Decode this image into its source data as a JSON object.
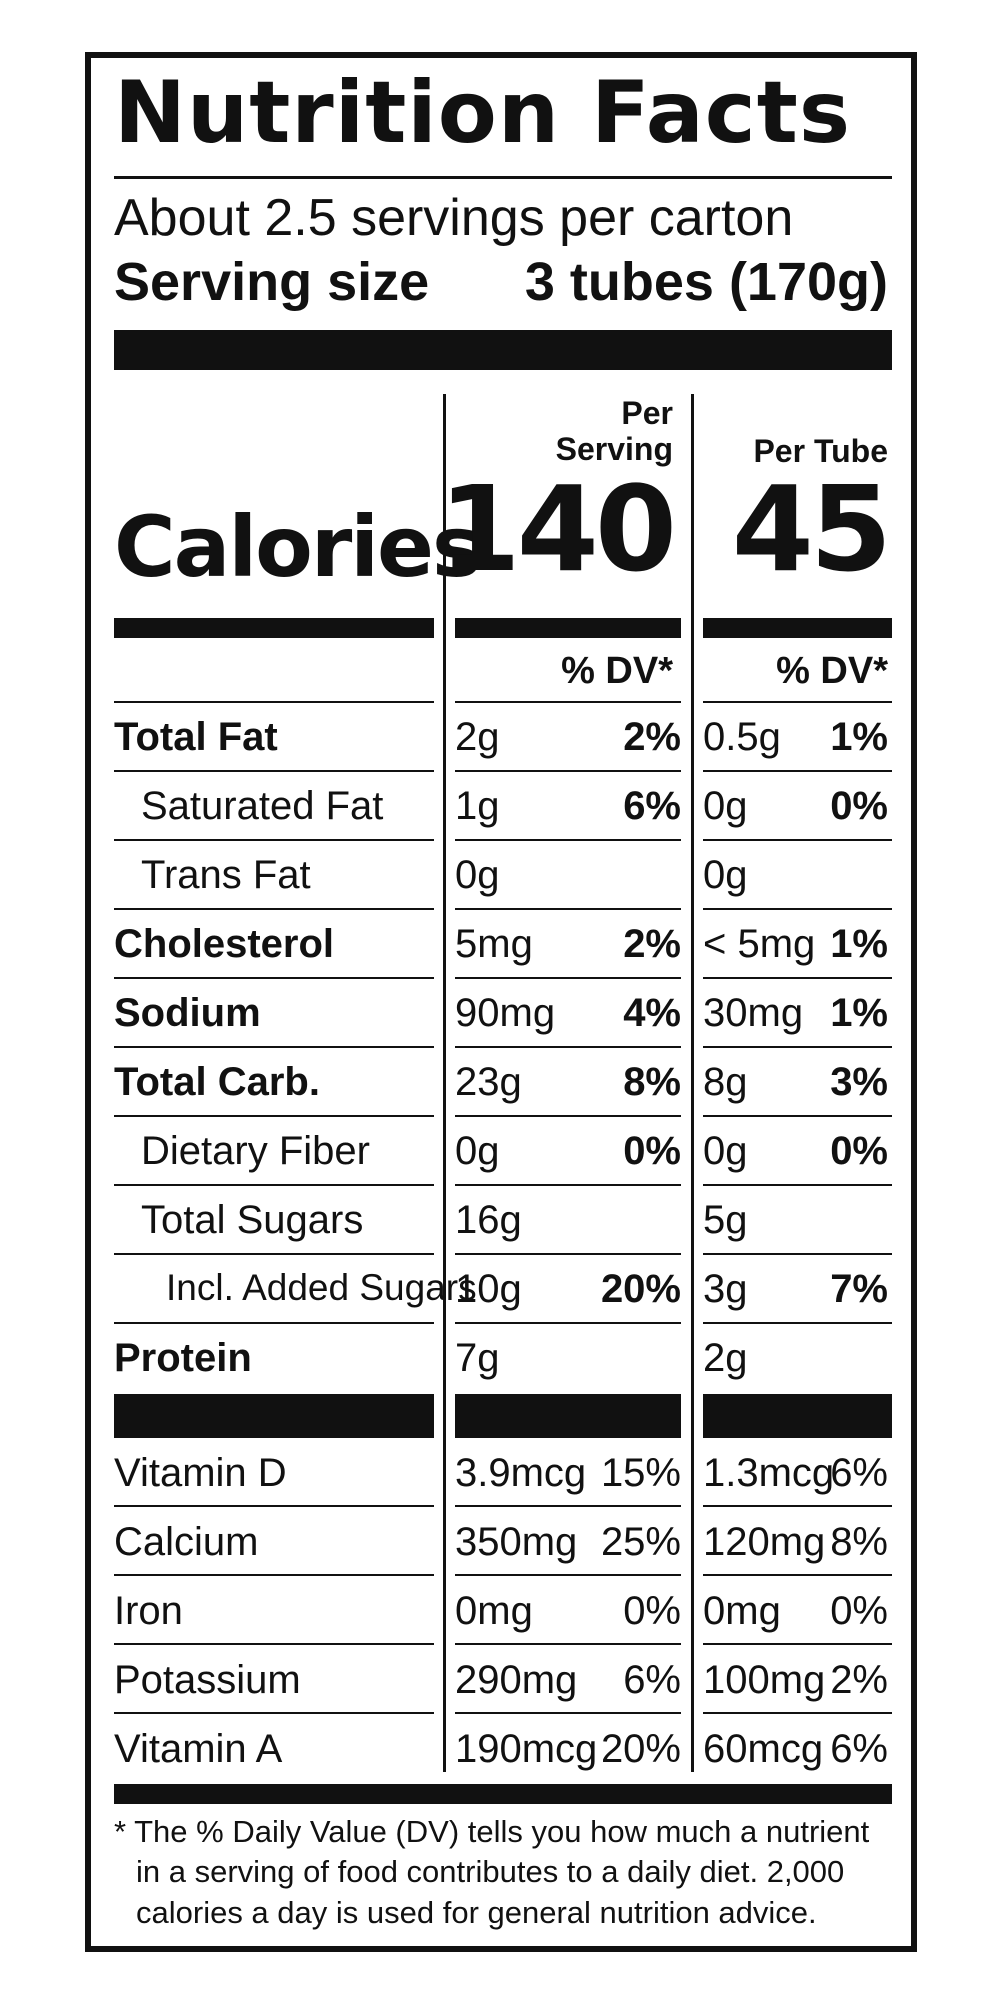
{
  "title": "Nutrition Facts",
  "servings_per_container": "About 2.5 servings per carton",
  "serving_size": {
    "label": "Serving size",
    "value": "3 tubes (170g)"
  },
  "calories": {
    "label": "Calories",
    "per_serving_header": [
      "Per",
      "Serving"
    ],
    "per_tube_header": "Per Tube",
    "per_serving": "140",
    "per_tube": "45"
  },
  "dv_header": "% DV*",
  "nutrients": [
    {
      "name": "Total Fat",
      "bold": true,
      "indent": 0,
      "serving_amt": "2g",
      "serving_dv": "2%",
      "tube_amt": "0.5g",
      "tube_dv": "1%"
    },
    {
      "name": "Saturated Fat",
      "bold": false,
      "indent": 1,
      "serving_amt": "1g",
      "serving_dv": "6%",
      "tube_amt": "0g",
      "tube_dv": "0%"
    },
    {
      "name": "Trans Fat",
      "bold": false,
      "indent": 1,
      "serving_amt": "0g",
      "serving_dv": "",
      "tube_amt": "0g",
      "tube_dv": ""
    },
    {
      "name": "Cholesterol",
      "bold": true,
      "indent": 0,
      "serving_amt": "5mg",
      "serving_dv": "2%",
      "tube_amt": "< 5mg",
      "tube_dv": "1%"
    },
    {
      "name": "Sodium",
      "bold": true,
      "indent": 0,
      "serving_amt": "90mg",
      "serving_dv": "4%",
      "tube_amt": "30mg",
      "tube_dv": "1%"
    },
    {
      "name": "Total Carb.",
      "bold": true,
      "indent": 0,
      "serving_amt": "23g",
      "serving_dv": "8%",
      "tube_amt": "8g",
      "tube_dv": "3%"
    },
    {
      "name": "Dietary Fiber",
      "bold": false,
      "indent": 1,
      "serving_amt": "0g",
      "serving_dv": "0%",
      "tube_amt": "0g",
      "tube_dv": "0%"
    },
    {
      "name": "Total Sugars",
      "bold": false,
      "indent": 1,
      "serving_amt": "16g",
      "serving_dv": "",
      "tube_amt": "5g",
      "tube_dv": ""
    },
    {
      "name": "Incl. Added Sugars",
      "bold": false,
      "indent": 2,
      "serving_amt": "10g",
      "serving_dv": "20%",
      "tube_amt": "3g",
      "tube_dv": "7%"
    },
    {
      "name": "Protein",
      "bold": true,
      "indent": 0,
      "serving_amt": "7g",
      "serving_dv": "",
      "tube_amt": "2g",
      "tube_dv": ""
    }
  ],
  "vitamins": [
    {
      "name": "Vitamin D",
      "serving_amt": "3.9mcg",
      "serving_dv": "15%",
      "tube_amt": "1.3mcg",
      "tube_dv": "6%"
    },
    {
      "name": "Calcium",
      "serving_amt": "350mg",
      "serving_dv": "25%",
      "tube_amt": "120mg",
      "tube_dv": "8%"
    },
    {
      "name": "Iron",
      "serving_amt": "0mg",
      "serving_dv": "0%",
      "tube_amt": "0mg",
      "tube_dv": "0%"
    },
    {
      "name": "Potassium",
      "serving_amt": "290mg",
      "serving_dv": "6%",
      "tube_amt": "100mg",
      "tube_dv": "2%"
    },
    {
      "name": "Vitamin A",
      "serving_amt": "190mcg",
      "serving_dv": "20%",
      "tube_amt": "60mcg",
      "tube_dv": "6%"
    }
  ],
  "footnote": "* The % Daily Value (DV) tells you how much a nutrient in a serving of food contributes to a daily diet. 2,000 calories a day is used for general nutrition advice."
}
